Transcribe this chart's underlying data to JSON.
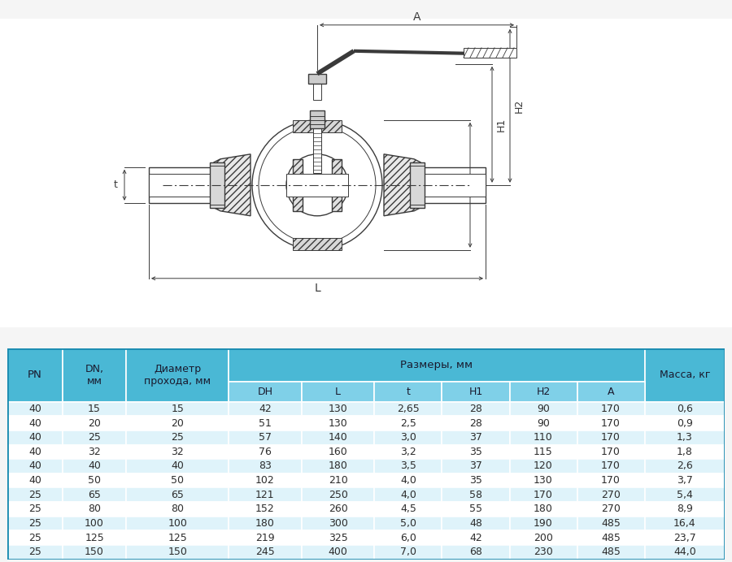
{
  "table_data": [
    [
      "40",
      "15",
      "15",
      "42",
      "130",
      "2,65",
      "28",
      "90",
      "170",
      "0,6"
    ],
    [
      "40",
      "20",
      "20",
      "51",
      "130",
      "2,5",
      "28",
      "90",
      "170",
      "0,9"
    ],
    [
      "40",
      "25",
      "25",
      "57",
      "140",
      "3,0",
      "37",
      "110",
      "170",
      "1,3"
    ],
    [
      "40",
      "32",
      "32",
      "76",
      "160",
      "3,2",
      "35",
      "115",
      "170",
      "1,8"
    ],
    [
      "40",
      "40",
      "40",
      "83",
      "180",
      "3,5",
      "37",
      "120",
      "170",
      "2,6"
    ],
    [
      "40",
      "50",
      "50",
      "102",
      "210",
      "4,0",
      "35",
      "130",
      "170",
      "3,7"
    ],
    [
      "25",
      "65",
      "65",
      "121",
      "250",
      "4,0",
      "58",
      "170",
      "270",
      "5,4"
    ],
    [
      "25",
      "80",
      "80",
      "152",
      "260",
      "4,5",
      "55",
      "180",
      "270",
      "8,9"
    ],
    [
      "25",
      "100",
      "100",
      "180",
      "300",
      "5,0",
      "48",
      "190",
      "485",
      "16,4"
    ],
    [
      "25",
      "125",
      "125",
      "219",
      "325",
      "6,0",
      "42",
      "200",
      "485",
      "23,7"
    ],
    [
      "25",
      "150",
      "150",
      "245",
      "400",
      "7,0",
      "68",
      "230",
      "485",
      "44,0"
    ]
  ],
  "header_bg": "#4ab8d5",
  "subheader_bg": "#7fd0e8",
  "row_bg_light": "#dff3fa",
  "row_bg_white": "#ffffff",
  "border_color": "#ffffff",
  "text_color": "#2c2c2c",
  "drawing_bg": "#ffffff",
  "fig_bg": "#f5f5f5",
  "draw_color": "#3a3a3a",
  "hatch_color": "#5a5a5a",
  "dim_color": "#3a3a3a"
}
